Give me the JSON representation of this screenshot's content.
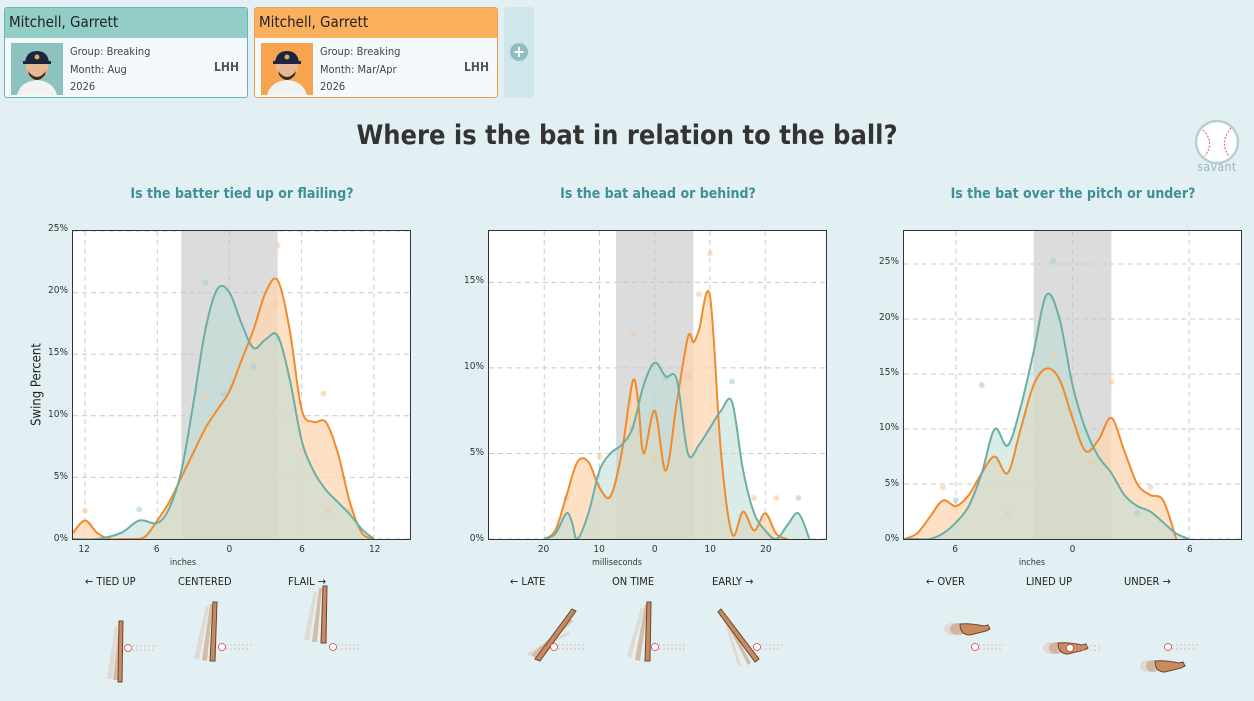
{
  "cards": [
    {
      "name": "Mitchell, Garrett",
      "group": "Group: Breaking",
      "month": "Month: Aug",
      "year": "2026",
      "hand": "LHH",
      "color": "#92cdc8",
      "border": "#6db2b0"
    },
    {
      "name": "Mitchell, Garrett",
      "group": "Group: Breaking",
      "month": "Month: Mar/Apr",
      "year": "2026",
      "hand": "LHH",
      "color": "#fbb05e",
      "border": "#f0a04c"
    }
  ],
  "add_icon": "plus-icon",
  "title": "Where is the bat in relation to the ball?",
  "savant_label": "savant",
  "y_axis_label": "Swing Percent",
  "colors": {
    "series1": "#6aaea6",
    "series1_fill": "#bcdcd6",
    "series2": "#f08a2a",
    "series2_fill": "#fdd7b1",
    "zone": "#dcdcdc"
  },
  "chart_data": [
    {
      "type": "area",
      "subtitle": "Is the batter tied up or flailing?",
      "xlabel": "inches",
      "ylabel": "Swing Percent",
      "xlim": [
        -13,
        15
      ],
      "ylim": [
        0,
        25
      ],
      "zone": [
        -4,
        4
      ],
      "xticks": [
        {
          "v": -12,
          "l": "12"
        },
        {
          "v": -6,
          "l": "6"
        },
        {
          "v": 0,
          "l": "0"
        },
        {
          "v": 6,
          "l": "6"
        },
        {
          "v": 12,
          "l": "12"
        }
      ],
      "yticks": [
        {
          "v": 0,
          "l": "0%"
        },
        {
          "v": 5,
          "l": "5%"
        },
        {
          "v": 10,
          "l": "10%"
        },
        {
          "v": 15,
          "l": "15%"
        },
        {
          "v": 20,
          "l": "20%"
        },
        {
          "v": 25,
          "l": "25%"
        }
      ],
      "directions": [
        "← TIED UP",
        "CENTERED",
        "FLAIL →"
      ],
      "series": [
        {
          "x": [
            -13,
            -11,
            -9,
            -7.5,
            -6,
            -5,
            -4,
            -3,
            -2,
            -1,
            0,
            1,
            2,
            3,
            4,
            5,
            6,
            7,
            8,
            9,
            10,
            11,
            12
          ],
          "y": [
            0,
            0,
            0.5,
            1.5,
            1.3,
            2.5,
            5.5,
            11,
            17,
            20.3,
            20,
            17.5,
            15.5,
            16.2,
            16.5,
            13,
            8,
            5.5,
            4,
            3,
            2,
            0.8,
            0
          ]
        },
        {
          "x": [
            -13,
            -12,
            -11,
            -10,
            -9,
            -8,
            -7,
            -6,
            -5,
            -4,
            -3,
            -2,
            -1,
            0,
            1,
            2,
            3,
            4,
            5,
            6,
            7,
            8,
            9,
            10,
            11,
            12
          ],
          "y": [
            0.5,
            1.5,
            0.5,
            0,
            0,
            0,
            0.2,
            1.5,
            3,
            5,
            7,
            9,
            10.5,
            12,
            14.5,
            17,
            20,
            21,
            17,
            10.5,
            9.5,
            9.5,
            7,
            3,
            0.5,
            0
          ]
        }
      ],
      "points": [
        {
          "x": -7.5,
          "y": 2.4,
          "s": 0
        },
        {
          "x": -2,
          "y": 20.8,
          "s": 0
        },
        {
          "x": 2,
          "y": 14,
          "s": 0
        },
        {
          "x": 4,
          "y": 16.3,
          "s": 0
        },
        {
          "x": -0.5,
          "y": 11.8,
          "s": 0
        },
        {
          "x": -12,
          "y": 2.3,
          "s": 1
        },
        {
          "x": 4,
          "y": 23.8,
          "s": 1
        },
        {
          "x": -2,
          "y": 11.5,
          "s": 1
        },
        {
          "x": 6,
          "y": 7.2,
          "s": 1
        },
        {
          "x": 7.8,
          "y": 11.8,
          "s": 1
        },
        {
          "x": 8.2,
          "y": 2.3,
          "s": 1
        },
        {
          "x": 10,
          "y": 2.3,
          "s": 1
        },
        {
          "x": 3.8,
          "y": 19,
          "s": 1
        }
      ]
    },
    {
      "type": "area",
      "subtitle": "Is the bat ahead or behind?",
      "xlabel": "milliseconds",
      "ylabel": "",
      "xlim": [
        -30,
        31
      ],
      "ylim": [
        0,
        18
      ],
      "zone": [
        -7,
        7
      ],
      "xticks": [
        {
          "v": -20,
          "l": "20"
        },
        {
          "v": -10,
          "l": "10"
        },
        {
          "v": 0,
          "l": "0"
        },
        {
          "v": 10,
          "l": "10"
        },
        {
          "v": 20,
          "l": "20"
        }
      ],
      "yticks": [
        {
          "v": 0,
          "l": "0%"
        },
        {
          "v": 5,
          "l": "5%"
        },
        {
          "v": 10,
          "l": "10%"
        },
        {
          "v": 15,
          "l": "15%"
        }
      ],
      "directions": [
        "← LATE",
        "ON TIME",
        "EARLY →"
      ],
      "series": [
        {
          "x": [
            -20,
            -18,
            -16,
            -15,
            -14,
            -12,
            -10,
            -8,
            -6,
            -4,
            -2,
            0,
            2,
            4,
            6,
            8,
            10,
            12,
            14,
            16,
            18,
            20,
            22,
            24,
            26,
            28
          ],
          "y": [
            0,
            0.3,
            1.5,
            1,
            0,
            1.5,
            4,
            5,
            5.5,
            6.5,
            9,
            10.3,
            9.5,
            9.3,
            5,
            5.5,
            6.5,
            7.5,
            8,
            4,
            1.5,
            0.5,
            0,
            0.8,
            1.5,
            0
          ]
        },
        {
          "x": [
            -20,
            -18,
            -16,
            -14,
            -12,
            -10,
            -8,
            -6,
            -4,
            -3,
            -2,
            0,
            2,
            4,
            6,
            7,
            8,
            10,
            12,
            14,
            16,
            18,
            20,
            22,
            24
          ],
          "y": [
            0,
            0.5,
            2.5,
            4.5,
            4.5,
            3,
            2.5,
            5,
            9.2,
            8,
            5,
            7.5,
            4,
            8,
            11.8,
            11.5,
            12.2,
            14.2,
            5,
            0.3,
            1.6,
            0.5,
            1.5,
            0.3,
            0
          ]
        }
      ],
      "points": [
        {
          "x": -16,
          "y": 2.4,
          "s": 0
        },
        {
          "x": 0,
          "y": 7.2,
          "s": 0
        },
        {
          "x": 14,
          "y": 9.2,
          "s": 0
        },
        {
          "x": 26,
          "y": 2.4,
          "s": 0
        },
        {
          "x": -4,
          "y": 6.5,
          "s": 0
        },
        {
          "x": 2,
          "y": 9.4,
          "s": 0
        },
        {
          "x": -4,
          "y": 11.9,
          "s": 1
        },
        {
          "x": -10,
          "y": 4.8,
          "s": 1
        },
        {
          "x": 10,
          "y": 16.7,
          "s": 1
        },
        {
          "x": 8,
          "y": 14.3,
          "s": 1
        },
        {
          "x": -8,
          "y": 2.4,
          "s": 1
        },
        {
          "x": 6,
          "y": 9.5,
          "s": 1
        },
        {
          "x": 18,
          "y": 2.4,
          "s": 1
        },
        {
          "x": 22,
          "y": 2.4,
          "s": 1
        },
        {
          "x": 0,
          "y": 4.7,
          "s": 1
        }
      ]
    },
    {
      "type": "area",
      "subtitle": "Is the bat over the pitch or under?",
      "xlabel": "inches",
      "ylabel": "",
      "xlim": [
        -13,
        13
      ],
      "ylim": [
        0,
        28
      ],
      "zone": [
        -3,
        3
      ],
      "xticks": [
        {
          "v": -9,
          "l": "6"
        },
        {
          "v": 0,
          "l": "0"
        },
        {
          "v": 9,
          "l": "6"
        }
      ],
      "yticks": [
        {
          "v": 0,
          "l": "0%"
        },
        {
          "v": 5,
          "l": "5%"
        },
        {
          "v": 10,
          "l": "10%"
        },
        {
          "v": 15,
          "l": "15%"
        },
        {
          "v": 20,
          "l": "20%"
        },
        {
          "v": 25,
          "l": "25%"
        }
      ],
      "directions": [
        "← OVER",
        "LINED UP",
        "UNDER →"
      ],
      "series": [
        {
          "x": [
            -13,
            -12,
            -11,
            -10,
            -9,
            -8,
            -7,
            -6,
            -5,
            -4,
            -3,
            -2,
            -1,
            0,
            1,
            2,
            3,
            4,
            5,
            6,
            7,
            8,
            9
          ],
          "y": [
            0,
            0,
            0,
            0.5,
            1.5,
            3,
            6,
            10,
            8.5,
            12,
            17,
            22.2,
            20,
            14,
            10,
            7.5,
            6,
            4,
            3,
            2.5,
            1.5,
            0.5,
            0
          ]
        },
        {
          "x": [
            -13,
            -12,
            -11,
            -10,
            -9,
            -8,
            -7,
            -6,
            -5,
            -4,
            -3,
            -2,
            -1,
            0,
            1,
            2,
            3,
            4,
            5,
            6,
            7,
            8
          ],
          "y": [
            0,
            0.5,
            2,
            3.5,
            3,
            4,
            6,
            7.5,
            6,
            10,
            14,
            15.5,
            14.5,
            11,
            8,
            9,
            11,
            8,
            5,
            4,
            3.5,
            0
          ]
        }
      ],
      "points": [
        {
          "x": -7,
          "y": 14,
          "s": 0
        },
        {
          "x": -1.5,
          "y": 25.3,
          "s": 0
        },
        {
          "x": -9,
          "y": 3.5,
          "s": 0
        },
        {
          "x": 5,
          "y": 2.4,
          "s": 0
        },
        {
          "x": -10,
          "y": 4.7,
          "s": 1
        },
        {
          "x": -1.5,
          "y": 16.7,
          "s": 1
        },
        {
          "x": 3,
          "y": 14.3,
          "s": 1
        },
        {
          "x": -5,
          "y": 2.4,
          "s": 1
        },
        {
          "x": 1.5,
          "y": 7,
          "s": 1
        },
        {
          "x": 6,
          "y": 4.7,
          "s": 1
        }
      ]
    }
  ]
}
